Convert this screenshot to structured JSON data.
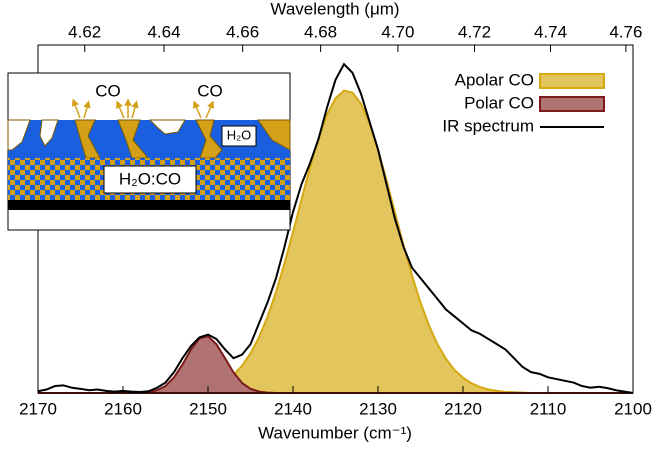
{
  "chart_data": {
    "type": "area",
    "xlabel": "Wavenumber (cm⁻¹)",
    "x2label": "Wavelength (μm)",
    "xlim": [
      2170,
      2100
    ],
    "xticks": [
      2170,
      2160,
      2150,
      2140,
      2130,
      2120,
      2110,
      2100
    ],
    "x2lim": [
      4.6083,
      4.7619
    ],
    "x2ticks": [
      4.62,
      4.64,
      4.66,
      4.68,
      {
        "value": 4.7,
        "label": "4.70"
      },
      4.72,
      4.74,
      4.76
    ],
    "ylim": [
      0,
      1
    ],
    "legend": "upper right",
    "x": [
      2170,
      2169,
      2168,
      2167,
      2166,
      2165,
      2164,
      2163,
      2162,
      2161,
      2160,
      2159,
      2158,
      2157,
      2156,
      2155,
      2154,
      2153,
      2152,
      2151,
      2150,
      2149,
      2148,
      2147,
      2146,
      2145,
      2144,
      2143,
      2142,
      2141,
      2140,
      2139,
      2138,
      2137,
      2136,
      2135,
      2134,
      2133,
      2132,
      2131,
      2130,
      2129,
      2128,
      2127,
      2126,
      2125,
      2124,
      2123,
      2122,
      2121,
      2120,
      2119,
      2118,
      2117,
      2116,
      2115,
      2114,
      2113,
      2112,
      2111,
      2110,
      2109,
      2108,
      2107,
      2106,
      2105,
      2104,
      2103,
      2102,
      2101,
      2100
    ],
    "series": [
      {
        "name": "Apolar CO",
        "kind": "fill",
        "color": "#e2c55c",
        "edgecolor": "#d6a912",
        "values": [
          0,
          0,
          0,
          0,
          0,
          0,
          0,
          0,
          0,
          0,
          0,
          0,
          0,
          0,
          0,
          0.001,
          0.001,
          0.002,
          0.004,
          0.007,
          0.013,
          0.021,
          0.033,
          0.052,
          0.078,
          0.114,
          0.16,
          0.219,
          0.29,
          0.372,
          0.462,
          0.556,
          0.648,
          0.731,
          0.8,
          0.847,
          0.869,
          0.863,
          0.831,
          0.774,
          0.7,
          0.612,
          0.518,
          0.425,
          0.338,
          0.26,
          0.194,
          0.14,
          0.098,
          0.066,
          0.044,
          0.028,
          0.017,
          0.01,
          0.006,
          0.003,
          0.002,
          0.001,
          0,
          0,
          0,
          0,
          0,
          0,
          0,
          0,
          0,
          0,
          0,
          0,
          0
        ]
      },
      {
        "name": "Polar CO",
        "kind": "fill",
        "color": "#b07372",
        "edgecolor": "#7b1a1a",
        "values": [
          0,
          0,
          0,
          0,
          0,
          0,
          0,
          0,
          0,
          0,
          0,
          0,
          0.001,
          0.002,
          0.008,
          0.02,
          0.045,
          0.082,
          0.125,
          0.157,
          0.163,
          0.14,
          0.1,
          0.059,
          0.029,
          0.012,
          0.004,
          0.001,
          0,
          0,
          0,
          0,
          0,
          0,
          0,
          0,
          0,
          0,
          0,
          0,
          0,
          0,
          0,
          0,
          0,
          0,
          0,
          0,
          0,
          0,
          0,
          0,
          0,
          0,
          0,
          0,
          0,
          0,
          0,
          0,
          0,
          0,
          0,
          0,
          0,
          0,
          0,
          0,
          0,
          0,
          0
        ]
      },
      {
        "name": "IR spectrum",
        "kind": "line",
        "color": "#000000",
        "values": [
          0.005,
          0.01,
          0.02,
          0.022,
          0.015,
          0.012,
          0.008,
          0.01,
          0.006,
          0.004,
          0.006,
          0.004,
          0.003,
          0.005,
          0.015,
          0.03,
          0.06,
          0.1,
          0.135,
          0.16,
          0.168,
          0.155,
          0.125,
          0.1,
          0.11,
          0.14,
          0.2,
          0.26,
          0.33,
          0.42,
          0.52,
          0.6,
          0.66,
          0.73,
          0.82,
          0.9,
          0.945,
          0.92,
          0.86,
          0.78,
          0.7,
          0.6,
          0.5,
          0.42,
          0.36,
          0.33,
          0.3,
          0.27,
          0.24,
          0.22,
          0.2,
          0.18,
          0.17,
          0.155,
          0.14,
          0.125,
          0.1,
          0.075,
          0.06,
          0.055,
          0.045,
          0.04,
          0.035,
          0.03,
          0.02,
          0.015,
          0.018,
          0.014,
          0.008,
          0.004,
          0
        ]
      }
    ],
    "inset_labels": [
      "CO",
      "CO",
      "H₂O",
      "H₂O:CO"
    ]
  }
}
